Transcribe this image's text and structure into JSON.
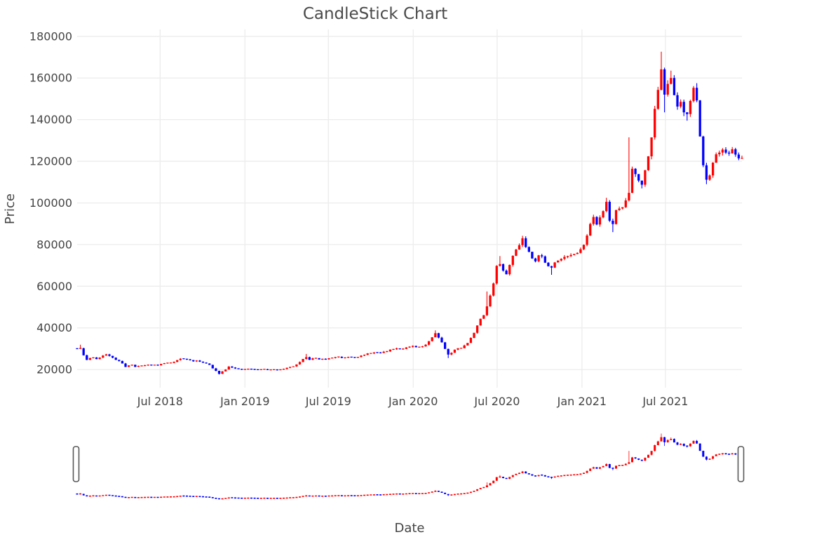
{
  "chart_data": {
    "type": "candlestick",
    "title": "CandleStick Chart",
    "xlabel": "Date",
    "ylabel": "Price",
    "legend": "none",
    "grid": true,
    "increasing_color": "#ff0000",
    "decreasing_color": "#0000ff",
    "grid_color": "#ececec",
    "text_color": "#444444",
    "background_color": "#ffffff",
    "x_range": [
      "2018-01-02",
      "2021-12-14"
    ],
    "ylim": [
      11300,
      183300
    ],
    "y_ticks": [
      20000,
      40000,
      60000,
      80000,
      100000,
      120000,
      140000,
      160000,
      180000
    ],
    "x_ticks": [
      {
        "label": "Jul 2018",
        "date": "2018-07-01"
      },
      {
        "label": "Jan 2019",
        "date": "2019-01-01"
      },
      {
        "label": "Jul 2019",
        "date": "2019-07-01"
      },
      {
        "label": "Jan 2020",
        "date": "2020-01-01"
      },
      {
        "label": "Jul 2020",
        "date": "2020-07-01"
      },
      {
        "label": "Jan 2021",
        "date": "2021-01-01"
      },
      {
        "label": "Jul 2021",
        "date": "2021-07-01"
      }
    ],
    "rangeslider": true,
    "extremes": {
      "min": {
        "date": "2018-11-06",
        "low": 17600
      },
      "max": {
        "date": "2021-06-22",
        "high": 172600
      }
    },
    "price_path": [
      [
        "2018-01-02",
        30000
      ],
      [
        "2018-01-06",
        31500,
        31900
      ],
      [
        "2018-01-14",
        27500
      ],
      [
        "2018-01-25",
        24000
      ],
      [
        "2018-02-03",
        26500
      ],
      [
        "2018-02-12",
        25000
      ],
      [
        "2018-02-24",
        26000
      ],
      [
        "2018-03-05",
        27500
      ],
      [
        "2018-03-14",
        26800
      ],
      [
        "2018-03-25",
        25000
      ],
      [
        "2018-04-04",
        23800
      ],
      [
        "2018-04-17",
        21500
      ],
      [
        "2018-04-29",
        22300
      ],
      [
        "2018-05-11",
        21300
      ],
      [
        "2018-05-25",
        22000
      ],
      [
        "2018-06-09",
        22300
      ],
      [
        "2018-06-24",
        22000
      ],
      [
        "2018-07-09",
        23000
      ],
      [
        "2018-07-24",
        23300
      ],
      [
        "2018-08-03",
        24200
      ],
      [
        "2018-08-16",
        25300
      ],
      [
        "2018-08-28",
        24800
      ],
      [
        "2018-09-10",
        24200
      ],
      [
        "2018-09-22",
        24000
      ],
      [
        "2018-10-04",
        23500
      ],
      [
        "2018-10-17",
        22000
      ],
      [
        "2018-10-26",
        19800
      ],
      [
        "2018-11-06",
        18200,
        null,
        17600
      ],
      [
        "2018-11-16",
        19500
      ],
      [
        "2018-11-28",
        21800
      ],
      [
        "2018-12-10",
        20500
      ],
      [
        "2018-12-22",
        19800
      ],
      [
        "2019-01-04",
        20300
      ],
      [
        "2019-01-25",
        19900
      ],
      [
        "2019-02-13",
        20100
      ],
      [
        "2019-03-01",
        19700
      ],
      [
        "2019-03-17",
        20100
      ],
      [
        "2019-04-04",
        20800
      ],
      [
        "2019-04-19",
        21800
      ],
      [
        "2019-05-01",
        23500
      ],
      [
        "2019-05-12",
        26000,
        27500
      ],
      [
        "2019-05-22",
        24800
      ],
      [
        "2019-06-04",
        25500
      ],
      [
        "2019-06-16",
        24700
      ],
      [
        "2019-07-04",
        25300
      ],
      [
        "2019-07-19",
        26300
      ],
      [
        "2019-08-01",
        25600
      ],
      [
        "2019-08-16",
        26300
      ],
      [
        "2019-08-28",
        26000
      ],
      [
        "2019-09-10",
        26500
      ],
      [
        "2019-09-22",
        27300
      ],
      [
        "2019-10-04",
        28300
      ],
      [
        "2019-10-16",
        27800
      ],
      [
        "2019-10-28",
        28300
      ],
      [
        "2019-11-10",
        29300
      ],
      [
        "2019-11-22",
        30300
      ],
      [
        "2019-12-04",
        30000
      ],
      [
        "2019-12-16",
        30500
      ],
      [
        "2020-01-01",
        31000
      ],
      [
        "2020-01-13",
        30400
      ],
      [
        "2020-01-25",
        31500
      ],
      [
        "2020-02-07",
        34500
      ],
      [
        "2020-02-19",
        37800,
        38800
      ],
      [
        "2020-03-01",
        34000
      ],
      [
        "2020-03-10",
        30000
      ],
      [
        "2020-03-19",
        26500,
        null,
        25500
      ],
      [
        "2020-03-28",
        29000
      ],
      [
        "2020-04-07",
        30500
      ],
      [
        "2020-04-16",
        30500
      ],
      [
        "2020-04-25",
        32000
      ],
      [
        "2020-05-04",
        34500
      ],
      [
        "2020-05-13",
        38500
      ],
      [
        "2020-05-22",
        42500
      ],
      [
        "2020-06-01",
        46000
      ],
      [
        "2020-06-10",
        51000,
        57500
      ],
      [
        "2020-06-19",
        58000
      ],
      [
        "2020-06-24",
        62500
      ],
      [
        "2020-06-28",
        68000
      ],
      [
        "2020-07-04",
        72500,
        74500
      ],
      [
        "2020-07-13",
        67000
      ],
      [
        "2020-07-19",
        65500
      ],
      [
        "2020-07-28",
        70000
      ],
      [
        "2020-08-07",
        76000
      ],
      [
        "2020-08-16",
        80000
      ],
      [
        "2020-08-25",
        83000,
        84200
      ],
      [
        "2020-09-04",
        78000
      ],
      [
        "2020-09-13",
        74500
      ],
      [
        "2020-09-22",
        72800
      ],
      [
        "2020-10-01",
        75500
      ],
      [
        "2020-10-10",
        73000
      ],
      [
        "2020-10-19",
        69500
      ],
      [
        "2020-10-25",
        68000,
        null,
        65500
      ],
      [
        "2020-11-04",
        71500
      ],
      [
        "2020-11-13",
        73500
      ],
      [
        "2020-11-22",
        74500
      ],
      [
        "2020-12-01",
        74000
      ],
      [
        "2020-12-10",
        75500
      ],
      [
        "2020-12-19",
        74500
      ],
      [
        "2020-12-28",
        76500
      ],
      [
        "2021-01-07",
        82000
      ],
      [
        "2021-01-16",
        88000
      ],
      [
        "2021-01-25",
        92500
      ],
      [
        "2021-02-04",
        90000
      ],
      [
        "2021-02-13",
        95500
      ],
      [
        "2021-02-22",
        100500,
        102500
      ],
      [
        "2021-03-01",
        93000
      ],
      [
        "2021-03-07",
        88500,
        null,
        86000
      ],
      [
        "2021-03-16",
        95500
      ],
      [
        "2021-03-25",
        97500
      ],
      [
        "2021-04-04",
        99500
      ],
      [
        "2021-04-12",
        103000,
        131500
      ],
      [
        "2021-04-19",
        117000
      ],
      [
        "2021-04-28",
        114000
      ],
      [
        "2021-05-07",
        110500
      ],
      [
        "2021-05-13",
        109000,
        null,
        107000
      ],
      [
        "2021-05-22",
        120000
      ],
      [
        "2021-06-01",
        133000
      ],
      [
        "2021-06-10",
        147000
      ],
      [
        "2021-06-18",
        158000
      ],
      [
        "2021-06-22",
        166000,
        172600
      ],
      [
        "2021-06-28",
        152000,
        null,
        143500
      ],
      [
        "2021-07-04",
        157000
      ],
      [
        "2021-07-10",
        162000,
        163500
      ],
      [
        "2021-07-16",
        155000
      ],
      [
        "2021-07-22",
        150000
      ],
      [
        "2021-07-28",
        146000
      ],
      [
        "2021-08-04",
        149500
      ],
      [
        "2021-08-10",
        144500
      ],
      [
        "2021-08-16",
        143000,
        null,
        139500
      ],
      [
        "2021-08-22",
        147500
      ],
      [
        "2021-08-28",
        152000
      ],
      [
        "2021-09-04",
        155500,
        157500
      ],
      [
        "2021-09-08",
        149000
      ],
      [
        "2021-09-12",
        138500
      ],
      [
        "2021-09-16",
        127000
      ],
      [
        "2021-09-20",
        119000
      ],
      [
        "2021-09-24",
        114500
      ],
      [
        "2021-09-28",
        111500,
        null,
        109000
      ],
      [
        "2021-10-04",
        113500
      ],
      [
        "2021-10-10",
        118500
      ],
      [
        "2021-10-16",
        123000
      ],
      [
        "2021-10-22",
        125500
      ],
      [
        "2021-10-28",
        123500
      ],
      [
        "2021-11-04",
        126500
      ],
      [
        "2021-11-10",
        125000
      ],
      [
        "2021-11-16",
        123000
      ],
      [
        "2021-11-22",
        126000
      ],
      [
        "2021-11-28",
        124500
      ],
      [
        "2021-12-04",
        122500
      ],
      [
        "2021-12-10",
        121000
      ]
    ]
  },
  "render": {
    "candle_interval_days": 7,
    "wiggle": 0.025,
    "seed": 11
  }
}
